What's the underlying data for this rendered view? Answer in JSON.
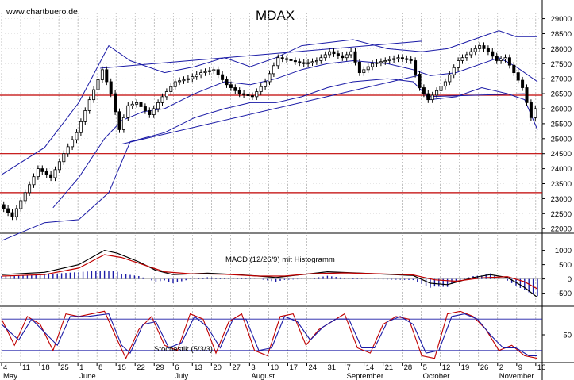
{
  "chart_data": {
    "type": "candlestick",
    "title": "MDAX",
    "source": "www.chartbuero.de",
    "price_ticks": [
      22000,
      22500,
      23000,
      23500,
      24000,
      24500,
      25000,
      25500,
      26000,
      26500,
      27000,
      27500,
      28000,
      28500,
      29000
    ],
    "price_ylim": [
      21900,
      29200
    ],
    "horizontal_levels": [
      23200,
      24500,
      26450
    ],
    "date_labels": [
      {
        "day": "4",
        "month": "May"
      },
      {
        "day": "11"
      },
      {
        "day": "18"
      },
      {
        "day": "25"
      },
      {
        "day": "1",
        "month": "June"
      },
      {
        "day": "8"
      },
      {
        "day": "15"
      },
      {
        "day": "22"
      },
      {
        "day": "29"
      },
      {
        "day": "6",
        "month": "July"
      },
      {
        "day": "13"
      },
      {
        "day": "20"
      },
      {
        "day": "27"
      },
      {
        "day": "3",
        "month": "August"
      },
      {
        "day": "10"
      },
      {
        "day": "17"
      },
      {
        "day": "24"
      },
      {
        "day": "31"
      },
      {
        "day": "7",
        "month": "September"
      },
      {
        "day": "14"
      },
      {
        "day": "21"
      },
      {
        "day": "28"
      },
      {
        "day": "5",
        "month": "October"
      },
      {
        "day": "12"
      },
      {
        "day": "19"
      },
      {
        "day": "26"
      },
      {
        "day": "2",
        "month": "November"
      },
      {
        "day": "9"
      },
      {
        "day": "16"
      }
    ],
    "close_trend": [
      {
        "x": 0,
        "y": 22800
      },
      {
        "x": 3,
        "y": 22400
      },
      {
        "x": 6,
        "y": 23200
      },
      {
        "x": 9,
        "y": 24000
      },
      {
        "x": 12,
        "y": 23700
      },
      {
        "x": 15,
        "y": 24500
      },
      {
        "x": 18,
        "y": 25200
      },
      {
        "x": 21,
        "y": 26300
      },
      {
        "x": 24,
        "y": 27300
      },
      {
        "x": 26,
        "y": 26500
      },
      {
        "x": 28,
        "y": 25300
      },
      {
        "x": 30,
        "y": 26100
      },
      {
        "x": 32,
        "y": 26200
      },
      {
        "x": 35,
        "y": 25800
      },
      {
        "x": 38,
        "y": 26400
      },
      {
        "x": 41,
        "y": 26900
      },
      {
        "x": 44,
        "y": 27000
      },
      {
        "x": 47,
        "y": 27200
      },
      {
        "x": 50,
        "y": 27300
      },
      {
        "x": 53,
        "y": 26800
      },
      {
        "x": 56,
        "y": 26500
      },
      {
        "x": 59,
        "y": 26400
      },
      {
        "x": 62,
        "y": 26900
      },
      {
        "x": 65,
        "y": 27700
      },
      {
        "x": 68,
        "y": 27600
      },
      {
        "x": 71,
        "y": 27500
      },
      {
        "x": 74,
        "y": 27600
      },
      {
        "x": 77,
        "y": 27900
      },
      {
        "x": 80,
        "y": 27700
      },
      {
        "x": 82,
        "y": 27900
      },
      {
        "x": 84,
        "y": 27200
      },
      {
        "x": 87,
        "y": 27500
      },
      {
        "x": 90,
        "y": 27600
      },
      {
        "x": 93,
        "y": 27700
      },
      {
        "x": 96,
        "y": 27600
      },
      {
        "x": 98,
        "y": 26700
      },
      {
        "x": 100,
        "y": 26300
      },
      {
        "x": 102,
        "y": 26600
      },
      {
        "x": 104,
        "y": 26900
      },
      {
        "x": 107,
        "y": 27600
      },
      {
        "x": 110,
        "y": 27900
      },
      {
        "x": 112,
        "y": 28100
      },
      {
        "x": 114,
        "y": 27900
      },
      {
        "x": 116,
        "y": 27600
      },
      {
        "x": 118,
        "y": 27700
      },
      {
        "x": 120,
        "y": 27200
      },
      {
        "x": 122,
        "y": 26700
      },
      {
        "x": 123,
        "y": 26200
      },
      {
        "x": 124,
        "y": 25700
      },
      {
        "x": 125,
        "y": 26000
      }
    ],
    "bollinger_upper": [
      {
        "x": 0,
        "y": 23800
      },
      {
        "x": 10,
        "y": 24700
      },
      {
        "x": 18,
        "y": 26200
      },
      {
        "x": 25,
        "y": 28100
      },
      {
        "x": 30,
        "y": 27600
      },
      {
        "x": 38,
        "y": 27200
      },
      {
        "x": 45,
        "y": 27400
      },
      {
        "x": 52,
        "y": 27700
      },
      {
        "x": 58,
        "y": 27400
      },
      {
        "x": 64,
        "y": 27700
      },
      {
        "x": 70,
        "y": 28100
      },
      {
        "x": 76,
        "y": 28200
      },
      {
        "x": 82,
        "y": 28300
      },
      {
        "x": 90,
        "y": 28000
      },
      {
        "x": 98,
        "y": 27900
      },
      {
        "x": 104,
        "y": 28000
      },
      {
        "x": 110,
        "y": 28300
      },
      {
        "x": 116,
        "y": 28600
      },
      {
        "x": 120,
        "y": 28400
      },
      {
        "x": 125,
        "y": 28400
      }
    ],
    "bollinger_lower": [
      {
        "x": 0,
        "y": 21600
      },
      {
        "x": 10,
        "y": 22200
      },
      {
        "x": 18,
        "y": 22300
      },
      {
        "x": 25,
        "y": 23200
      },
      {
        "x": 30,
        "y": 24900
      },
      {
        "x": 38,
        "y": 25200
      },
      {
        "x": 45,
        "y": 25700
      },
      {
        "x": 52,
        "y": 26000
      },
      {
        "x": 58,
        "y": 26200
      },
      {
        "x": 64,
        "y": 26200
      },
      {
        "x": 70,
        "y": 26400
      },
      {
        "x": 76,
        "y": 26700
      },
      {
        "x": 82,
        "y": 26900
      },
      {
        "x": 90,
        "y": 27000
      },
      {
        "x": 96,
        "y": 26900
      },
      {
        "x": 100,
        "y": 26300
      },
      {
        "x": 106,
        "y": 26400
      },
      {
        "x": 112,
        "y": 26700
      },
      {
        "x": 118,
        "y": 26500
      },
      {
        "x": 122,
        "y": 26300
      },
      {
        "x": 125,
        "y": 25300
      }
    ],
    "bollinger_mid": [
      {
        "x": 12,
        "y": 22700
      },
      {
        "x": 18,
        "y": 23700
      },
      {
        "x": 24,
        "y": 25000
      },
      {
        "x": 28,
        "y": 25600
      },
      {
        "x": 33,
        "y": 25900
      },
      {
        "x": 38,
        "y": 26000
      },
      {
        "x": 45,
        "y": 26500
      },
      {
        "x": 52,
        "y": 26900
      },
      {
        "x": 58,
        "y": 26800
      },
      {
        "x": 64,
        "y": 27000
      },
      {
        "x": 70,
        "y": 27300
      },
      {
        "x": 76,
        "y": 27500
      },
      {
        "x": 82,
        "y": 27600
      },
      {
        "x": 90,
        "y": 27500
      },
      {
        "x": 96,
        "y": 27300
      },
      {
        "x": 100,
        "y": 27100
      },
      {
        "x": 106,
        "y": 27200
      },
      {
        "x": 112,
        "y": 27500
      },
      {
        "x": 116,
        "y": 27700
      },
      {
        "x": 120,
        "y": 27400
      },
      {
        "x": 125,
        "y": 26900
      }
    ],
    "trendlines": [
      {
        "from": {
          "x": 23,
          "y": 27350
        },
        "to": {
          "x": 98,
          "y": 28250
        }
      },
      {
        "from": {
          "x": 28,
          "y": 24820
        },
        "to": {
          "x": 97,
          "y": 27100
        }
      },
      {
        "from": {
          "x": 99,
          "y": 26400
        },
        "to": {
          "x": 122,
          "y": 26500
        }
      }
    ],
    "macd": {
      "label": "MACD (12/26/9) mit Histogramm",
      "ticks": [
        -500,
        0,
        500,
        1000
      ],
      "ylim": [
        -900,
        1100
      ],
      "macd_line": [
        {
          "x": 0,
          "y": 150
        },
        {
          "x": 10,
          "y": 230
        },
        {
          "x": 18,
          "y": 500
        },
        {
          "x": 24,
          "y": 1000
        },
        {
          "x": 27,
          "y": 900
        },
        {
          "x": 32,
          "y": 600
        },
        {
          "x": 36,
          "y": 300
        },
        {
          "x": 40,
          "y": 150
        },
        {
          "x": 48,
          "y": 200
        },
        {
          "x": 55,
          "y": 150
        },
        {
          "x": 60,
          "y": 100
        },
        {
          "x": 64,
          "y": 50
        },
        {
          "x": 70,
          "y": 150
        },
        {
          "x": 76,
          "y": 250
        },
        {
          "x": 84,
          "y": 200
        },
        {
          "x": 90,
          "y": 160
        },
        {
          "x": 96,
          "y": 120
        },
        {
          "x": 100,
          "y": -150
        },
        {
          "x": 104,
          "y": -200
        },
        {
          "x": 110,
          "y": 50
        },
        {
          "x": 114,
          "y": 150
        },
        {
          "x": 118,
          "y": 50
        },
        {
          "x": 122,
          "y": -300
        },
        {
          "x": 125,
          "y": -650
        }
      ],
      "signal_line": [
        {
          "x": 0,
          "y": 100
        },
        {
          "x": 10,
          "y": 150
        },
        {
          "x": 18,
          "y": 380
        },
        {
          "x": 24,
          "y": 850
        },
        {
          "x": 28,
          "y": 750
        },
        {
          "x": 33,
          "y": 500
        },
        {
          "x": 38,
          "y": 250
        },
        {
          "x": 44,
          "y": 180
        },
        {
          "x": 52,
          "y": 160
        },
        {
          "x": 60,
          "y": 100
        },
        {
          "x": 66,
          "y": 100
        },
        {
          "x": 72,
          "y": 180
        },
        {
          "x": 80,
          "y": 210
        },
        {
          "x": 88,
          "y": 180
        },
        {
          "x": 96,
          "y": 140
        },
        {
          "x": 101,
          "y": -30
        },
        {
          "x": 106,
          "y": -80
        },
        {
          "x": 112,
          "y": 40
        },
        {
          "x": 118,
          "y": 80
        },
        {
          "x": 122,
          "y": -100
        },
        {
          "x": 125,
          "y": -350
        }
      ]
    },
    "stochastic": {
      "label": "Stochastik (5/3/3)",
      "tick": 50,
      "ylim": [
        0,
        100
      ],
      "levels": [
        20,
        80
      ],
      "k_line": [
        {
          "x": 0,
          "y": 80
        },
        {
          "x": 3,
          "y": 30
        },
        {
          "x": 6,
          "y": 85
        },
        {
          "x": 9,
          "y": 70
        },
        {
          "x": 12,
          "y": 20
        },
        {
          "x": 15,
          "y": 90
        },
        {
          "x": 18,
          "y": 85
        },
        {
          "x": 21,
          "y": 90
        },
        {
          "x": 24,
          "y": 95
        },
        {
          "x": 27,
          "y": 40
        },
        {
          "x": 29,
          "y": 5
        },
        {
          "x": 32,
          "y": 60
        },
        {
          "x": 35,
          "y": 85
        },
        {
          "x": 38,
          "y": 30
        },
        {
          "x": 41,
          "y": 20
        },
        {
          "x": 44,
          "y": 90
        },
        {
          "x": 47,
          "y": 80
        },
        {
          "x": 50,
          "y": 15
        },
        {
          "x": 53,
          "y": 75
        },
        {
          "x": 56,
          "y": 90
        },
        {
          "x": 59,
          "y": 20
        },
        {
          "x": 62,
          "y": 10
        },
        {
          "x": 65,
          "y": 85
        },
        {
          "x": 68,
          "y": 90
        },
        {
          "x": 71,
          "y": 30
        },
        {
          "x": 74,
          "y": 60
        },
        {
          "x": 77,
          "y": 75
        },
        {
          "x": 80,
          "y": 90
        },
        {
          "x": 83,
          "y": 25
        },
        {
          "x": 86,
          "y": 15
        },
        {
          "x": 89,
          "y": 70
        },
        {
          "x": 92,
          "y": 85
        },
        {
          "x": 95,
          "y": 80
        },
        {
          "x": 98,
          "y": 10
        },
        {
          "x": 101,
          "y": 5
        },
        {
          "x": 104,
          "y": 90
        },
        {
          "x": 107,
          "y": 95
        },
        {
          "x": 110,
          "y": 85
        },
        {
          "x": 113,
          "y": 60
        },
        {
          "x": 116,
          "y": 20
        },
        {
          "x": 119,
          "y": 30
        },
        {
          "x": 122,
          "y": 10
        },
        {
          "x": 125,
          "y": 5
        }
      ],
      "d_line": [
        {
          "x": 0,
          "y": 70
        },
        {
          "x": 4,
          "y": 40
        },
        {
          "x": 7,
          "y": 80
        },
        {
          "x": 10,
          "y": 55
        },
        {
          "x": 13,
          "y": 30
        },
        {
          "x": 16,
          "y": 85
        },
        {
          "x": 20,
          "y": 85
        },
        {
          "x": 25,
          "y": 90
        },
        {
          "x": 28,
          "y": 30
        },
        {
          "x": 30,
          "y": 15
        },
        {
          "x": 33,
          "y": 70
        },
        {
          "x": 36,
          "y": 75
        },
        {
          "x": 39,
          "y": 25
        },
        {
          "x": 42,
          "y": 35
        },
        {
          "x": 45,
          "y": 85
        },
        {
          "x": 48,
          "y": 65
        },
        {
          "x": 51,
          "y": 25
        },
        {
          "x": 54,
          "y": 80
        },
        {
          "x": 57,
          "y": 80
        },
        {
          "x": 60,
          "y": 20
        },
        {
          "x": 63,
          "y": 25
        },
        {
          "x": 66,
          "y": 85
        },
        {
          "x": 69,
          "y": 75
        },
        {
          "x": 72,
          "y": 40
        },
        {
          "x": 75,
          "y": 65
        },
        {
          "x": 78,
          "y": 80
        },
        {
          "x": 81,
          "y": 80
        },
        {
          "x": 84,
          "y": 25
        },
        {
          "x": 87,
          "y": 25
        },
        {
          "x": 90,
          "y": 75
        },
        {
          "x": 93,
          "y": 85
        },
        {
          "x": 96,
          "y": 70
        },
        {
          "x": 99,
          "y": 15
        },
        {
          "x": 102,
          "y": 20
        },
        {
          "x": 105,
          "y": 85
        },
        {
          "x": 108,
          "y": 90
        },
        {
          "x": 111,
          "y": 80
        },
        {
          "x": 114,
          "y": 50
        },
        {
          "x": 117,
          "y": 25
        },
        {
          "x": 120,
          "y": 25
        },
        {
          "x": 123,
          "y": 10
        },
        {
          "x": 125,
          "y": 10
        }
      ]
    },
    "colors": {
      "candles": "#000000",
      "bollinger": "#1a1aa6",
      "trendline": "#1a1aa6",
      "level": "#c00000",
      "macd": "#000000",
      "signal": "#c00000",
      "histogram": "#1a1aa6",
      "stoch_k": "#c00000",
      "stoch_d": "#1a1aa6",
      "grid": "#9a9a9a"
    }
  }
}
